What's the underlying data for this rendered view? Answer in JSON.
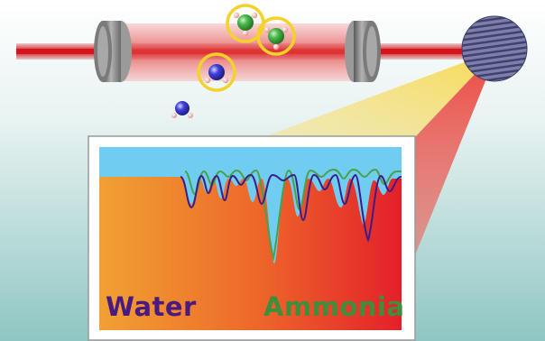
{
  "labels": {
    "water": "Water",
    "ammonia": "Ammonia"
  },
  "colors": {
    "background_top": "#ffffff",
    "background_bottom": "#8fc6c3",
    "laser": "#d6141b",
    "mirror": "#8a8a8a",
    "spectrum_fill_left": "#f0a133",
    "spectrum_fill_right": "#e8232b",
    "sky": "#6ecdf0",
    "water_trace": "#3d1d8a",
    "ammonia_trace": "#4aa14a",
    "molecule_highlight": "#f5d22a",
    "ammonia_atom": "#4ab84a",
    "water_atom": "#3f3fe0",
    "hydrogen_atom": "#f2a7a7"
  },
  "molecules": [
    {
      "kind": "ammonia",
      "highlighted": true
    },
    {
      "kind": "ammonia",
      "highlighted": true
    },
    {
      "kind": "water",
      "highlighted": true
    },
    {
      "kind": "water",
      "highlighted": false
    }
  ]
}
